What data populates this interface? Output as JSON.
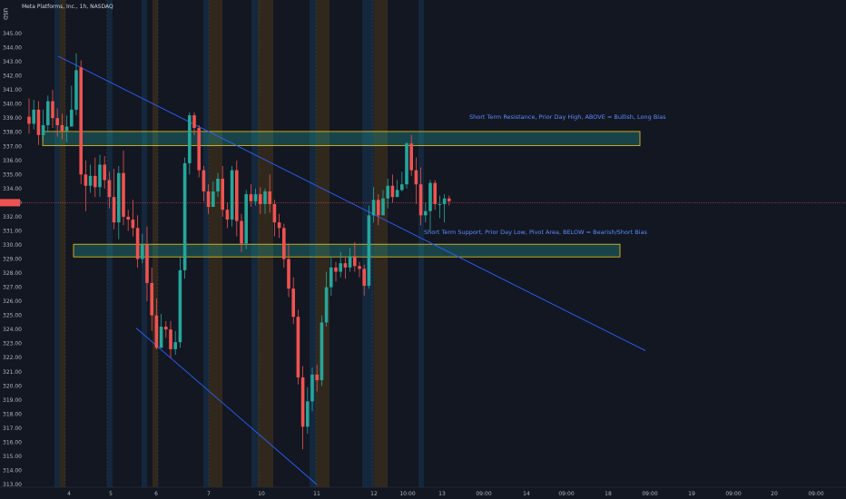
{
  "header": {
    "currency": "USD",
    "symbol_info": "Meta Platforms, Inc., 1h, NASDAQ"
  },
  "colors": {
    "background": "#131722",
    "up": "#26a69a",
    "down": "#ef5350",
    "trendline": "#2962ff",
    "zone_border": "#f5c518",
    "zone_fill": "rgba(38,166,154,0.32)",
    "session_blue": "rgba(33,150,243,0.13)",
    "session_orange": "rgba(255,152,0,0.13)",
    "current_price_line": "#ef5350"
  },
  "chart_data": {
    "type": "candlestick",
    "ylim": [
      313,
      345
    ],
    "y_ticks": [
      "345.00",
      "344.00",
      "343.00",
      "342.00",
      "341.00",
      "340.00",
      "339.00",
      "338.00",
      "337.00",
      "336.00",
      "335.00",
      "334.00",
      "333.00",
      "332.00",
      "331.00",
      "330.00",
      "329.00",
      "328.00",
      "327.00",
      "326.00",
      "325.00",
      "324.00",
      "323.00",
      "322.00",
      "321.00",
      "320.00",
      "319.00",
      "318.00",
      "317.00",
      "316.00",
      "315.00",
      "314.00",
      "313.00"
    ],
    "x_ticks": [
      "4",
      "5",
      "6",
      "7",
      "10",
      "11",
      "12",
      "10:00",
      "13",
      "09:00",
      "14",
      "09:00",
      "18",
      "09:00",
      "19",
      "09:00",
      "20",
      "09:00"
    ],
    "current_price": 333.0,
    "candles": [
      [
        339.1,
        338.6,
        340.4,
        337.9
      ],
      [
        338.6,
        339.6,
        340.3,
        338.2
      ],
      [
        339.6,
        337.8,
        340.2,
        337.1
      ],
      [
        337.8,
        338.5,
        339.6,
        337.4
      ],
      [
        338.5,
        340.2,
        340.6,
        338.0
      ],
      [
        340.2,
        339.0,
        341.0,
        338.3
      ],
      [
        339.0,
        338.5,
        339.7,
        337.7
      ],
      [
        338.5,
        338.1,
        339.3,
        337.5
      ],
      [
        338.1,
        338.4,
        339.2,
        337.3
      ],
      [
        338.4,
        339.6,
        341.3,
        338.9
      ],
      [
        339.6,
        342.4,
        343.6,
        339.2
      ],
      [
        342.6,
        335.0,
        343.1,
        334.3
      ],
      [
        335.0,
        334.2,
        336.0,
        332.4
      ],
      [
        334.2,
        334.9,
        335.7,
        333.7
      ],
      [
        334.9,
        334.1,
        336.2,
        333.4
      ],
      [
        334.1,
        335.7,
        336.4,
        333.4
      ],
      [
        335.7,
        334.6,
        336.3,
        334.0
      ],
      [
        334.6,
        333.4,
        335.2,
        332.6
      ],
      [
        333.4,
        331.6,
        335.4,
        331.1
      ],
      [
        331.6,
        335.1,
        335.6,
        330.4
      ],
      [
        335.1,
        332.0,
        336.7,
        331.4
      ],
      [
        332.0,
        331.8,
        332.5,
        331.0
      ],
      [
        331.8,
        331.2,
        333.2,
        330.6
      ],
      [
        331.2,
        329.0,
        332.1,
        328.4
      ],
      [
        329.0,
        330.0,
        330.8,
        328.7
      ],
      [
        330.0,
        327.3,
        331.3,
        326.0
      ],
      [
        327.3,
        325.0,
        328.4,
        323.9
      ],
      [
        325.0,
        322.7,
        326.2,
        322.6
      ],
      [
        322.7,
        324.2,
        325.1,
        323.2
      ],
      [
        324.2,
        324.0,
        324.6,
        323.4
      ],
      [
        324.0,
        322.6,
        324.6,
        322.0
      ],
      [
        322.6,
        323.1,
        323.9,
        322.2
      ],
      [
        323.1,
        328.2,
        329.1,
        322.7
      ],
      [
        328.2,
        335.8,
        336.2,
        327.6
      ],
      [
        335.8,
        339.2,
        339.4,
        335.0
      ],
      [
        339.2,
        338.3,
        339.4,
        337.8
      ],
      [
        338.3,
        335.3,
        338.5,
        334.8
      ],
      [
        335.3,
        333.8,
        335.6,
        333.1
      ],
      [
        333.8,
        332.7,
        334.3,
        332.2
      ],
      [
        332.7,
        333.8,
        334.5,
        332.9
      ],
      [
        333.8,
        334.7,
        335.1,
        333.4
      ],
      [
        334.7,
        332.5,
        335.6,
        332.0
      ],
      [
        332.5,
        331.8,
        333.0,
        331.2
      ],
      [
        331.8,
        335.3,
        335.6,
        331.3
      ],
      [
        335.3,
        331.7,
        336.0,
        330.6
      ],
      [
        331.7,
        330.1,
        332.2,
        329.5
      ],
      [
        330.1,
        333.6,
        333.9,
        329.7
      ],
      [
        333.6,
        333.1,
        334.3,
        332.7
      ],
      [
        333.1,
        333.6,
        334.0,
        332.8
      ],
      [
        333.6,
        332.9,
        334.1,
        332.2
      ],
      [
        332.9,
        333.8,
        334.0,
        332.2
      ],
      [
        333.8,
        332.9,
        335.0,
        332.3
      ],
      [
        332.9,
        331.6,
        333.2,
        330.6
      ],
      [
        331.6,
        331.2,
        332.2,
        330.5
      ],
      [
        331.2,
        329.0,
        331.5,
        328.4
      ],
      [
        329.0,
        326.9,
        330.1,
        326.3
      ],
      [
        326.9,
        324.9,
        327.7,
        324.4
      ],
      [
        324.9,
        320.6,
        325.4,
        320.1
      ],
      [
        320.6,
        317.1,
        321.4,
        315.5
      ],
      [
        317.1,
        318.9,
        319.9,
        316.6
      ],
      [
        318.9,
        320.8,
        321.3,
        318.2
      ],
      [
        320.8,
        320.4,
        321.5,
        319.6
      ],
      [
        320.4,
        324.5,
        325.0,
        320.0
      ],
      [
        324.5,
        327.0,
        328.1,
        324.2
      ],
      [
        327.0,
        328.4,
        329.2,
        326.4
      ],
      [
        328.4,
        328.1,
        328.8,
        327.4
      ],
      [
        328.1,
        328.7,
        329.5,
        327.7
      ],
      [
        328.7,
        328.4,
        329.1,
        327.6
      ],
      [
        328.4,
        329.2,
        329.8,
        328.1
      ],
      [
        329.2,
        328.5,
        330.2,
        328.1
      ],
      [
        328.5,
        328.3,
        328.8,
        327.7
      ],
      [
        328.3,
        327.1,
        328.6,
        326.4
      ],
      [
        327.1,
        332.1,
        332.8,
        326.9
      ],
      [
        332.1,
        333.2,
        334.1,
        331.6
      ],
      [
        333.2,
        332.1,
        333.6,
        331.4
      ],
      [
        332.1,
        333.3,
        333.9,
        332.1
      ],
      [
        333.3,
        334.2,
        334.7,
        332.6
      ],
      [
        334.2,
        333.4,
        335.0,
        333.0
      ],
      [
        333.4,
        333.9,
        334.6,
        333.4
      ],
      [
        333.9,
        334.3,
        335.2,
        333.8
      ],
      [
        334.3,
        337.2,
        337.3,
        334.0
      ],
      [
        337.2,
        335.3,
        337.8,
        334.9
      ],
      [
        335.3,
        334.3,
        336.2,
        332.9
      ],
      [
        334.3,
        332.1,
        335.5,
        331.4
      ],
      [
        332.1,
        332.4,
        333.0,
        331.6
      ],
      [
        332.4,
        334.4,
        334.6,
        331.0
      ],
      [
        334.4,
        332.9,
        334.6,
        332.5
      ],
      [
        332.9,
        332.9,
        333.5,
        331.9
      ],
      [
        332.9,
        333.3,
        333.6,
        331.6
      ],
      [
        333.3,
        333.1,
        333.5,
        332.8
      ]
    ]
  },
  "annotations": {
    "resistance_label": "Short Term Resistance, Prior Day High, ABOVE = Bullish, Long Bias",
    "support_label": "Short Term Support, Prior Day Low, Pivot Area, BELOW = Bearish/Short Bias"
  },
  "zones": [
    {
      "name": "resistance",
      "top": 338.05,
      "bottom": 337.05
    },
    {
      "name": "support",
      "top": 330.05,
      "bottom": 329.15
    }
  ],
  "trendlines": [
    {
      "name": "upper-trendline",
      "p1": [
        0,
        343.4
      ],
      "p2": [
        1,
        322.5
      ]
    },
    {
      "name": "lower-trendline",
      "p1": [
        0,
        324.1
      ],
      "p2": [
        1,
        313.0
      ]
    }
  ]
}
